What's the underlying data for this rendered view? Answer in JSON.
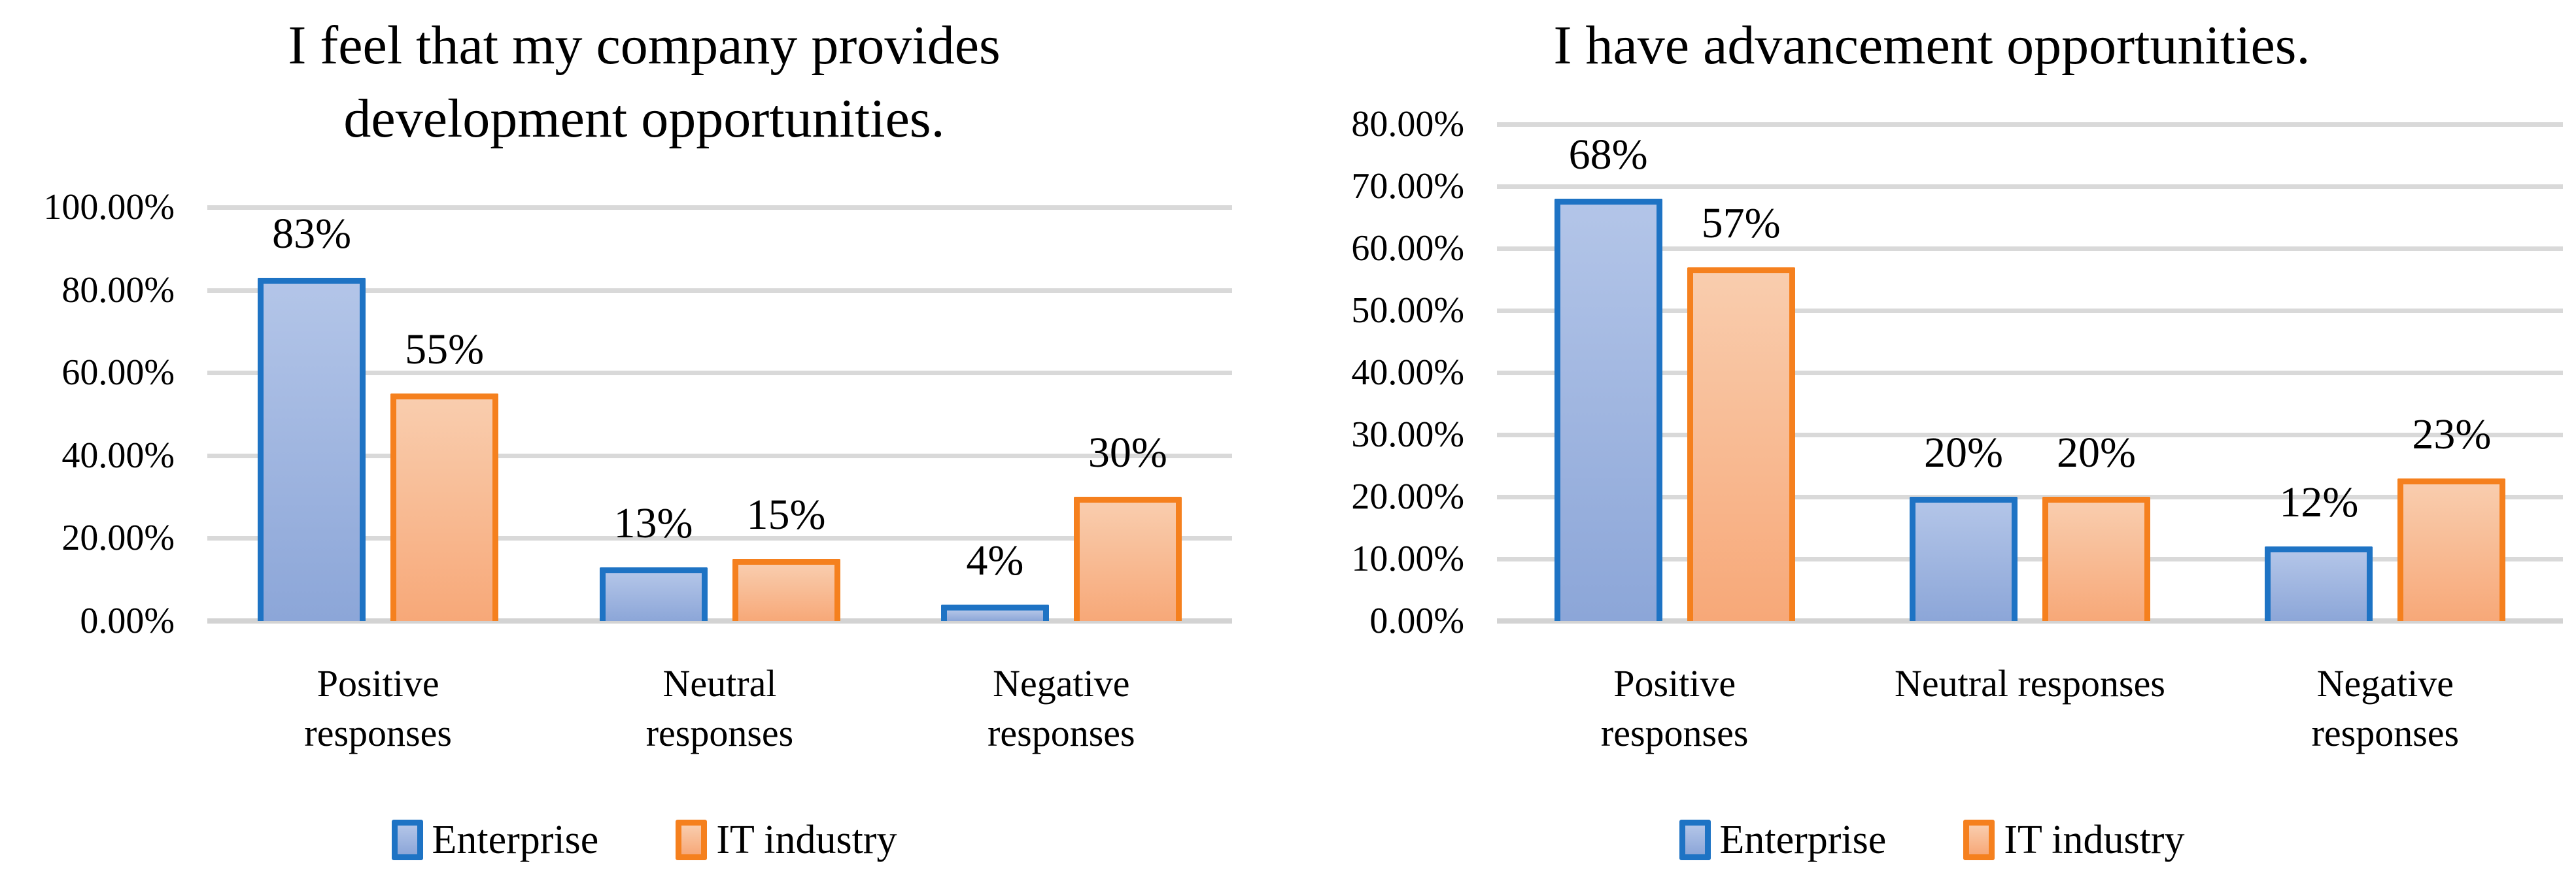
{
  "figure": {
    "background": "#FFFFFF",
    "text_color": "#000000",
    "gridline_color": "#D9D9D9",
    "axis_line_color": "#D3D3D3"
  },
  "series_styles": {
    "Enterprise": {
      "border": "#1E73C4",
      "fill_top": "#B3C5E8",
      "fill_bottom": "#8CA6D8"
    },
    "IT industry": {
      "border": "#F5801E",
      "fill_top": "#F9CDAE",
      "fill_bottom": "#F7A878"
    }
  },
  "legend": {
    "items": [
      {
        "label": "Enterprise"
      },
      {
        "label": "IT industry"
      }
    ]
  },
  "chart_data": [
    {
      "type": "bar",
      "title": "I feel that my company provides development opportunities.",
      "title_lines": [
        "I feel that my company provides",
        "development opportunities."
      ],
      "categories": [
        "Positive responses",
        "Neutral responses",
        "Negative responses"
      ],
      "category_lines": [
        [
          "Positive",
          "responses"
        ],
        [
          "Neutral",
          "responses"
        ],
        [
          "Negative",
          "responses"
        ]
      ],
      "series": [
        {
          "name": "Enterprise",
          "values": [
            83,
            13,
            4
          ],
          "data_labels": [
            "83%",
            "13%",
            "4%"
          ]
        },
        {
          "name": "IT industry",
          "values": [
            55,
            15,
            30
          ],
          "data_labels": [
            "55%",
            "15%",
            "30%"
          ]
        }
      ],
      "xlabel": "",
      "ylabel": "",
      "ylim": [
        0,
        100
      ],
      "ytick_step": 20,
      "ytick_labels": [
        "0.00%",
        "20.00%",
        "40.00%",
        "60.00%",
        "80.00%",
        "100.00%"
      ],
      "grid": true,
      "legend": [
        "Enterprise",
        "IT industry"
      ],
      "legend_position": "bottom"
    },
    {
      "type": "bar",
      "title": "I have advancement opportunities.",
      "title_lines": [
        "I have advancement opportunities."
      ],
      "categories": [
        "Positive responses",
        "Neutral responses",
        "Negative responses"
      ],
      "category_lines": [
        [
          "Positive",
          "responses"
        ],
        [
          "Neutral responses"
        ],
        [
          "Negative",
          "responses"
        ]
      ],
      "series": [
        {
          "name": "Enterprise",
          "values": [
            68,
            20,
            12
          ],
          "data_labels": [
            "68%",
            "20%",
            "12%"
          ]
        },
        {
          "name": "IT industry",
          "values": [
            57,
            20,
            23
          ],
          "data_labels": [
            "57%",
            "20%",
            "23%"
          ]
        }
      ],
      "xlabel": "",
      "ylabel": "",
      "ylim": [
        0,
        80
      ],
      "ytick_step": 10,
      "ytick_labels": [
        "0.00%",
        "10.00%",
        "20.00%",
        "30.00%",
        "40.00%",
        "50.00%",
        "60.00%",
        "70.00%",
        "80.00%"
      ],
      "grid": true,
      "legend": [
        "Enterprise",
        "IT industry"
      ],
      "legend_position": "bottom"
    }
  ]
}
